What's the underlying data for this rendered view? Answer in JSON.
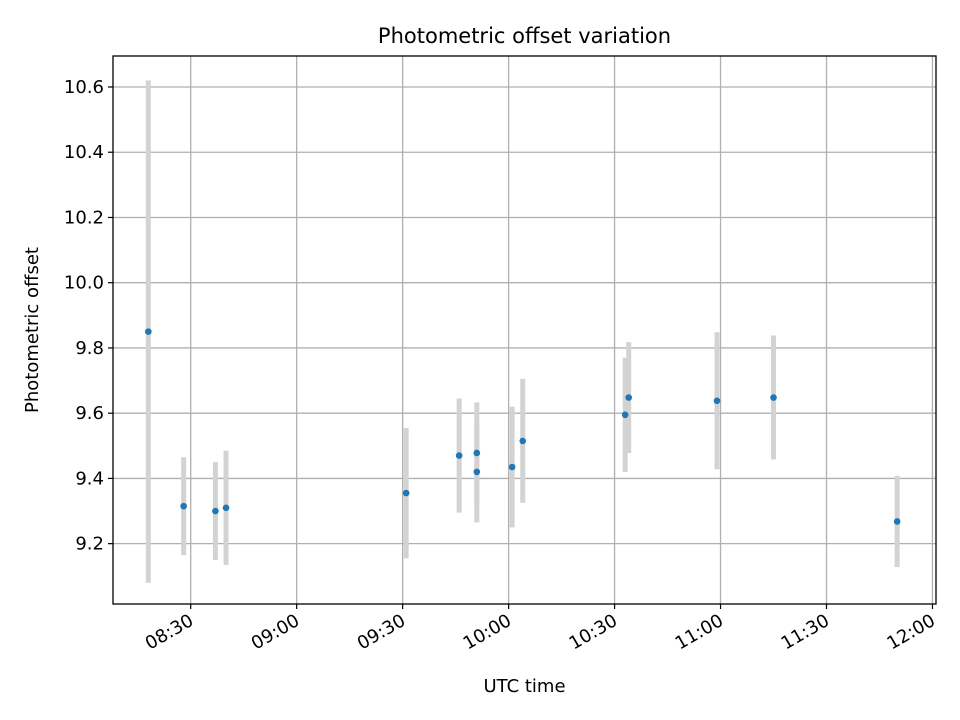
{
  "chart_data": {
    "type": "scatter",
    "title": "Photometric offset variation",
    "xlabel": "UTC time",
    "ylabel": "Photometric offset",
    "xlim": [
      "08:08",
      "12:01"
    ],
    "ylim": [
      9.015,
      10.695
    ],
    "grid": true,
    "x_ticks": [
      "08:30",
      "09:00",
      "09:30",
      "10:00",
      "10:30",
      "11:00",
      "11:30",
      "12:00"
    ],
    "y_ticks": [
      "9.2",
      "9.4",
      "9.6",
      "9.8",
      "10.0",
      "10.2",
      "10.4",
      "10.6"
    ],
    "point_color": "#1f77b4",
    "errorbar_color": "#d3d3d3",
    "points": [
      {
        "x": "08:18",
        "y": 9.85,
        "err": 0.77
      },
      {
        "x": "08:28",
        "y": 9.315,
        "err": 0.15
      },
      {
        "x": "08:37",
        "y": 9.3,
        "err": 0.15
      },
      {
        "x": "08:40",
        "y": 9.31,
        "err": 0.175
      },
      {
        "x": "09:31",
        "y": 9.355,
        "err": 0.2
      },
      {
        "x": "09:46",
        "y": 9.47,
        "err": 0.175
      },
      {
        "x": "09:51",
        "y": 9.478,
        "err": 0.155
      },
      {
        "x": "09:51",
        "y": 9.42,
        "err": 0.155
      },
      {
        "x": "10:01",
        "y": 9.435,
        "err": 0.185
      },
      {
        "x": "10:04",
        "y": 9.515,
        "err": 0.19
      },
      {
        "x": "10:33",
        "y": 9.595,
        "err": 0.175
      },
      {
        "x": "10:34",
        "y": 9.648,
        "err": 0.17
      },
      {
        "x": "10:59",
        "y": 9.638,
        "err": 0.21
      },
      {
        "x": "11:15",
        "y": 9.648,
        "err": 0.19
      },
      {
        "x": "11:50",
        "y": 9.268,
        "err": 0.14
      }
    ]
  }
}
